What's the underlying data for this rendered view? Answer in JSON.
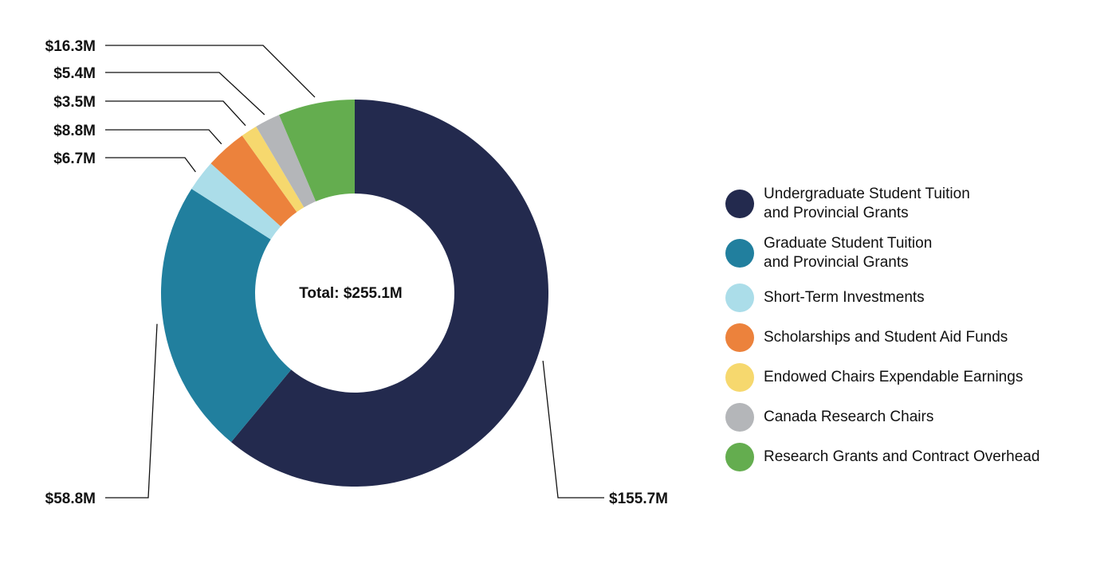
{
  "chart_data": {
    "type": "pie",
    "donut": true,
    "center_label": "Total: $255.1M",
    "total": 255.1,
    "unit": "$M",
    "legend_position": "right",
    "slices": [
      {
        "name": "Undergraduate Student Tuition\nand Provincial Grants",
        "value": 155.7,
        "label": "$155.7M",
        "color": "#232a4e"
      },
      {
        "name": "Graduate Student Tuition\nand Provincial Grants",
        "value": 58.8,
        "label": "$58.8M",
        "color": "#217f9e"
      },
      {
        "name": "Short-Term Investments",
        "value": 6.7,
        "label": "$6.7M",
        "color": "#abdde9"
      },
      {
        "name": "Scholarships and Student Aid Funds",
        "value": 8.8,
        "label": "$8.8M",
        "color": "#ec823c"
      },
      {
        "name": "Endowed Chairs Expendable Earnings",
        "value": 3.5,
        "label": "$3.5M",
        "color": "#f6d86e"
      },
      {
        "name": "Canada Research Chairs",
        "value": 5.4,
        "label": "$5.4M",
        "color": "#b4b6b9"
      },
      {
        "name": "Research Grants and Contract Overhead",
        "value": 16.3,
        "label": "$16.3M",
        "color": "#64ad4f"
      }
    ]
  }
}
